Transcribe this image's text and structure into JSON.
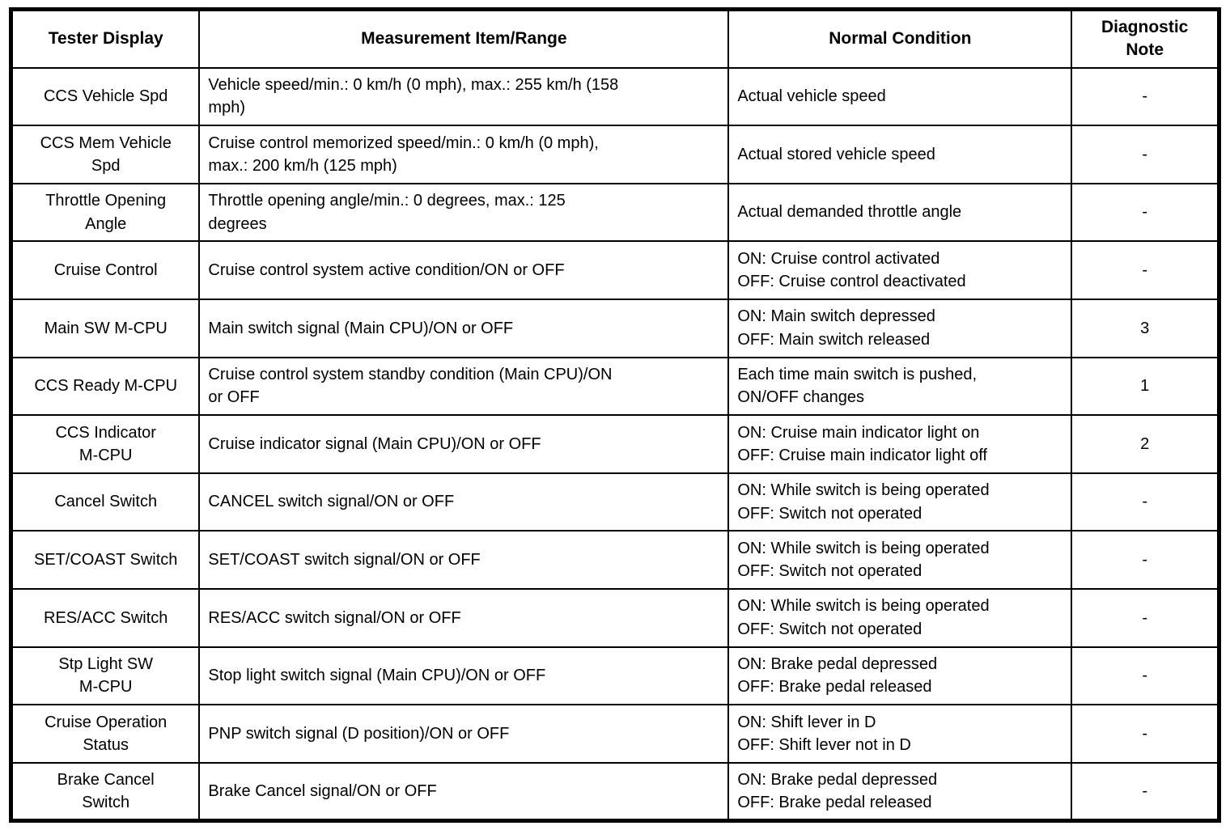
{
  "table": {
    "headers": [
      "Tester Display",
      "Measurement Item/Range",
      "Normal Condition",
      "Diagnostic\nNote"
    ],
    "rows": [
      {
        "tester_display": "CCS Vehicle Spd",
        "measurement": "Vehicle speed/min.: 0 km/h (0 mph), max.: 255 km/h (158\nmph)",
        "normal_condition": "Actual vehicle speed",
        "diagnostic_note": "-"
      },
      {
        "tester_display": "CCS Mem Vehicle\nSpd",
        "measurement": "Cruise control memorized speed/min.: 0 km/h (0 mph),\nmax.: 200 km/h (125 mph)",
        "normal_condition": "Actual stored vehicle speed",
        "diagnostic_note": "-"
      },
      {
        "tester_display": "Throttle Opening\nAngle",
        "measurement": "Throttle opening angle/min.: 0 degrees, max.: 125\ndegrees",
        "normal_condition": "Actual demanded throttle angle",
        "diagnostic_note": "-"
      },
      {
        "tester_display": "Cruise Control",
        "measurement": "Cruise control system active condition/ON or OFF",
        "normal_condition": "ON: Cruise control activated\nOFF: Cruise control deactivated",
        "diagnostic_note": "-"
      },
      {
        "tester_display": "Main SW M-CPU",
        "measurement": "Main switch signal (Main CPU)/ON or OFF",
        "normal_condition": "ON: Main switch depressed\nOFF: Main switch released",
        "diagnostic_note": "3"
      },
      {
        "tester_display": "CCS Ready M-CPU",
        "measurement": "Cruise control system standby condition (Main CPU)/ON\nor OFF",
        "normal_condition": "Each time main switch is pushed,\nON/OFF changes",
        "diagnostic_note": "1"
      },
      {
        "tester_display": "CCS Indicator\nM-CPU",
        "measurement": "Cruise indicator signal (Main CPU)/ON or OFF",
        "normal_condition": "ON: Cruise main indicator light on\nOFF: Cruise main indicator light off",
        "diagnostic_note": "2"
      },
      {
        "tester_display": "Cancel Switch",
        "measurement": "CANCEL switch signal/ON or OFF",
        "normal_condition": "ON: While switch is being operated\nOFF: Switch not operated",
        "diagnostic_note": "-"
      },
      {
        "tester_display": "SET/COAST Switch",
        "measurement": "SET/COAST switch signal/ON or OFF",
        "normal_condition": "ON: While switch is being operated\nOFF: Switch not operated",
        "diagnostic_note": "-"
      },
      {
        "tester_display": "RES/ACC Switch",
        "measurement": "RES/ACC switch signal/ON or OFF",
        "normal_condition": "ON: While switch is being operated\nOFF: Switch not operated",
        "diagnostic_note": "-"
      },
      {
        "tester_display": "Stp Light SW\nM-CPU",
        "measurement": "Stop light switch signal (Main CPU)/ON or OFF",
        "normal_condition": "ON: Brake pedal depressed\nOFF: Brake pedal released",
        "diagnostic_note": "-"
      },
      {
        "tester_display": "Cruise Operation\nStatus",
        "measurement": "PNP switch signal (D position)/ON or OFF",
        "normal_condition": "ON: Shift lever in D\nOFF: Shift lever not in D",
        "diagnostic_note": "-"
      },
      {
        "tester_display": "Brake Cancel\nSwitch",
        "measurement": "Brake Cancel signal/ON or OFF",
        "normal_condition": "ON: Brake pedal depressed\nOFF: Brake pedal released",
        "diagnostic_note": "-"
      }
    ]
  }
}
